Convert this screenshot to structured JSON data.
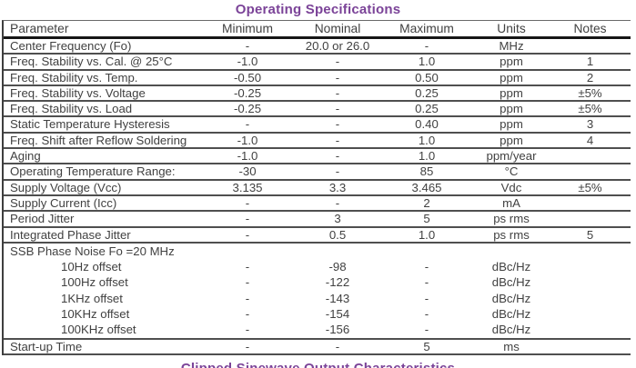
{
  "title": "Operating Specifications",
  "footer_partial_title": "Clipped Sinewave Output Characteristics",
  "colors": {
    "accent_purple": "#7b4398",
    "text": "#414141",
    "row_line": "#4f4f4f",
    "header_line": "#161616"
  },
  "table": {
    "columns": [
      "Parameter",
      "Minimum",
      "Nominal",
      "Maximum",
      "Units",
      "Notes"
    ],
    "rows": [
      {
        "param": "Center Frequency (Fo)",
        "min": "-",
        "nom": "20.0 or 26.0",
        "max": "-",
        "units": "MHz",
        "notes": ""
      },
      {
        "param": "Freq. Stability vs. Cal. @ 25°C",
        "min": "-1.0",
        "nom": "-",
        "max": "1.0",
        "units": "ppm",
        "notes": "1"
      },
      {
        "param": "Freq. Stability vs. Temp.",
        "min": "-0.50",
        "nom": "-",
        "max": "0.50",
        "units": "ppm",
        "notes": "2"
      },
      {
        "param": "Freq. Stability vs. Voltage",
        "min": "-0.25",
        "nom": "-",
        "max": "0.25",
        "units": "ppm",
        "notes": "±5%"
      },
      {
        "param": "Freq. Stability vs. Load",
        "min": "-0.25",
        "nom": "-",
        "max": "0.25",
        "units": "ppm",
        "notes": "±5%"
      },
      {
        "param": "Static Temperature Hysteresis",
        "min": "-",
        "nom": "-",
        "max": "0.40",
        "units": "ppm",
        "notes": "3"
      },
      {
        "param": "Freq. Shift after Reflow Soldering",
        "min": "-1.0",
        "nom": "-",
        "max": "1.0",
        "units": "ppm",
        "notes": "4"
      },
      {
        "param": "Aging",
        "min": "-1.0",
        "nom": "-",
        "max": "1.0",
        "units": "ppm/year",
        "notes": ""
      },
      {
        "param": "Operating Temperature Range:",
        "min": "-30",
        "nom": "-",
        "max": "85",
        "units": "°C",
        "notes": ""
      },
      {
        "param": "Supply Voltage (Vcc)",
        "min": "3.135",
        "nom": "3.3",
        "max": "3.465",
        "units": "Vdc",
        "notes": "±5%"
      },
      {
        "param": "Supply Current (Icc)",
        "min": "-",
        "nom": "-",
        "max": "2",
        "units": "mA",
        "notes": ""
      },
      {
        "param": "Period Jitter",
        "min": "-",
        "nom": "3",
        "max": "5",
        "units": "ps rms",
        "notes": ""
      },
      {
        "param": "Integrated Phase Jitter",
        "min": "-",
        "nom": "0.5",
        "max": "1.0",
        "units": "ps rms",
        "notes": "5"
      },
      {
        "param": "SSB Phase Noise Fo =20 MHz",
        "type": "group",
        "sub": [
          {
            "param": "10Hz offset",
            "min": "-",
            "nom": "-98",
            "max": "-",
            "units": "dBc/Hz",
            "notes": ""
          },
          {
            "param": "100Hz offset",
            "min": "-",
            "nom": "-122",
            "max": "-",
            "units": "dBc/Hz",
            "notes": ""
          },
          {
            "param": "1KHz offset",
            "min": "-",
            "nom": "-143",
            "max": "-",
            "units": "dBc/Hz",
            "notes": ""
          },
          {
            "param": "10KHz offset",
            "min": "-",
            "nom": "-154",
            "max": "-",
            "units": "dBc/Hz",
            "notes": ""
          },
          {
            "param": "100KHz offset",
            "min": "-",
            "nom": "-156",
            "max": "-",
            "units": "dBc/Hz",
            "notes": ""
          }
        ]
      },
      {
        "param": "Start-up Time",
        "min": "-",
        "nom": "-",
        "max": "5",
        "units": "ms",
        "notes": ""
      }
    ]
  }
}
